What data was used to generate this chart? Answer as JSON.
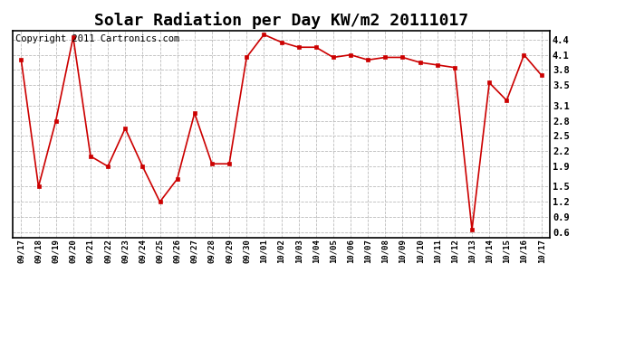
{
  "title": "Solar Radiation per Day KW/m2 20111017",
  "copyright_text": "Copyright 2011 Cartronics.com",
  "dates": [
    "09/17",
    "09/18",
    "09/19",
    "09/20",
    "09/21",
    "09/22",
    "09/23",
    "09/24",
    "09/25",
    "09/26",
    "09/27",
    "09/28",
    "09/29",
    "09/30",
    "10/01",
    "10/02",
    "10/03",
    "10/04",
    "10/05",
    "10/06",
    "10/07",
    "10/08",
    "10/09",
    "10/10",
    "10/11",
    "10/12",
    "10/13",
    "10/14",
    "10/15",
    "10/16",
    "10/17"
  ],
  "values": [
    4.0,
    1.5,
    2.8,
    4.45,
    2.1,
    1.9,
    2.65,
    1.9,
    1.2,
    1.65,
    2.95,
    1.95,
    1.95,
    4.05,
    4.5,
    4.35,
    4.25,
    4.25,
    4.05,
    4.1,
    4.0,
    4.05,
    4.05,
    3.95,
    3.9,
    3.85,
    0.65,
    3.55,
    3.2,
    4.1,
    3.7
  ],
  "line_color": "#cc0000",
  "marker_color": "#cc0000",
  "bg_color": "#ffffff",
  "plot_bg_color": "#ffffff",
  "grid_color": "#bbbbbb",
  "yticks": [
    0.6,
    0.9,
    1.2,
    1.5,
    1.9,
    2.2,
    2.5,
    2.8,
    3.1,
    3.5,
    3.8,
    4.1,
    4.4
  ],
  "ylim": [
    0.5,
    4.58
  ],
  "title_fontsize": 13,
  "copyright_fontsize": 7.5
}
